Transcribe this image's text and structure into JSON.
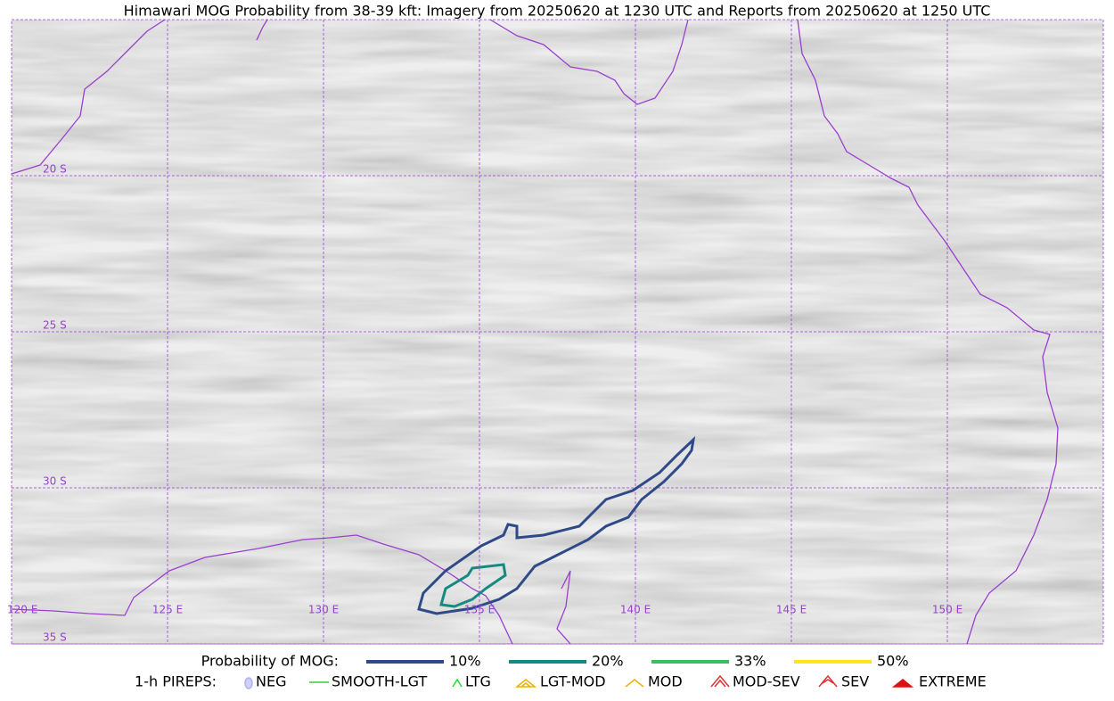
{
  "title": "Himawari MOG Probability from 38-39 kft: Imagery from 20250620 at 1230 UTC and Reports from 20250620 at 1250 UTC",
  "map": {
    "lon_labels": [
      "120 E",
      "125 E",
      "130 E",
      "135 E",
      "140 E",
      "145 E",
      "150 E"
    ],
    "lat_labels": [
      "20 S",
      "25 S",
      "30 S",
      "35 S"
    ]
  },
  "legend": {
    "probability": {
      "label": "Probability of MOG:",
      "items": [
        {
          "name": "10%",
          "color": "#2f4a88"
        },
        {
          "name": "20%",
          "color": "#168a80"
        },
        {
          "name": "33%",
          "color": "#3dbe5c"
        },
        {
          "name": "50%",
          "color": "#ffe619"
        }
      ]
    },
    "pireps": {
      "label": "1-h PIREPS:",
      "items": [
        "NEG",
        "SMOOTH-LGT",
        "LTG",
        "LGT-MOD",
        "MOD",
        "MOD-SEV",
        "SEV",
        "EXTREME"
      ]
    }
  }
}
